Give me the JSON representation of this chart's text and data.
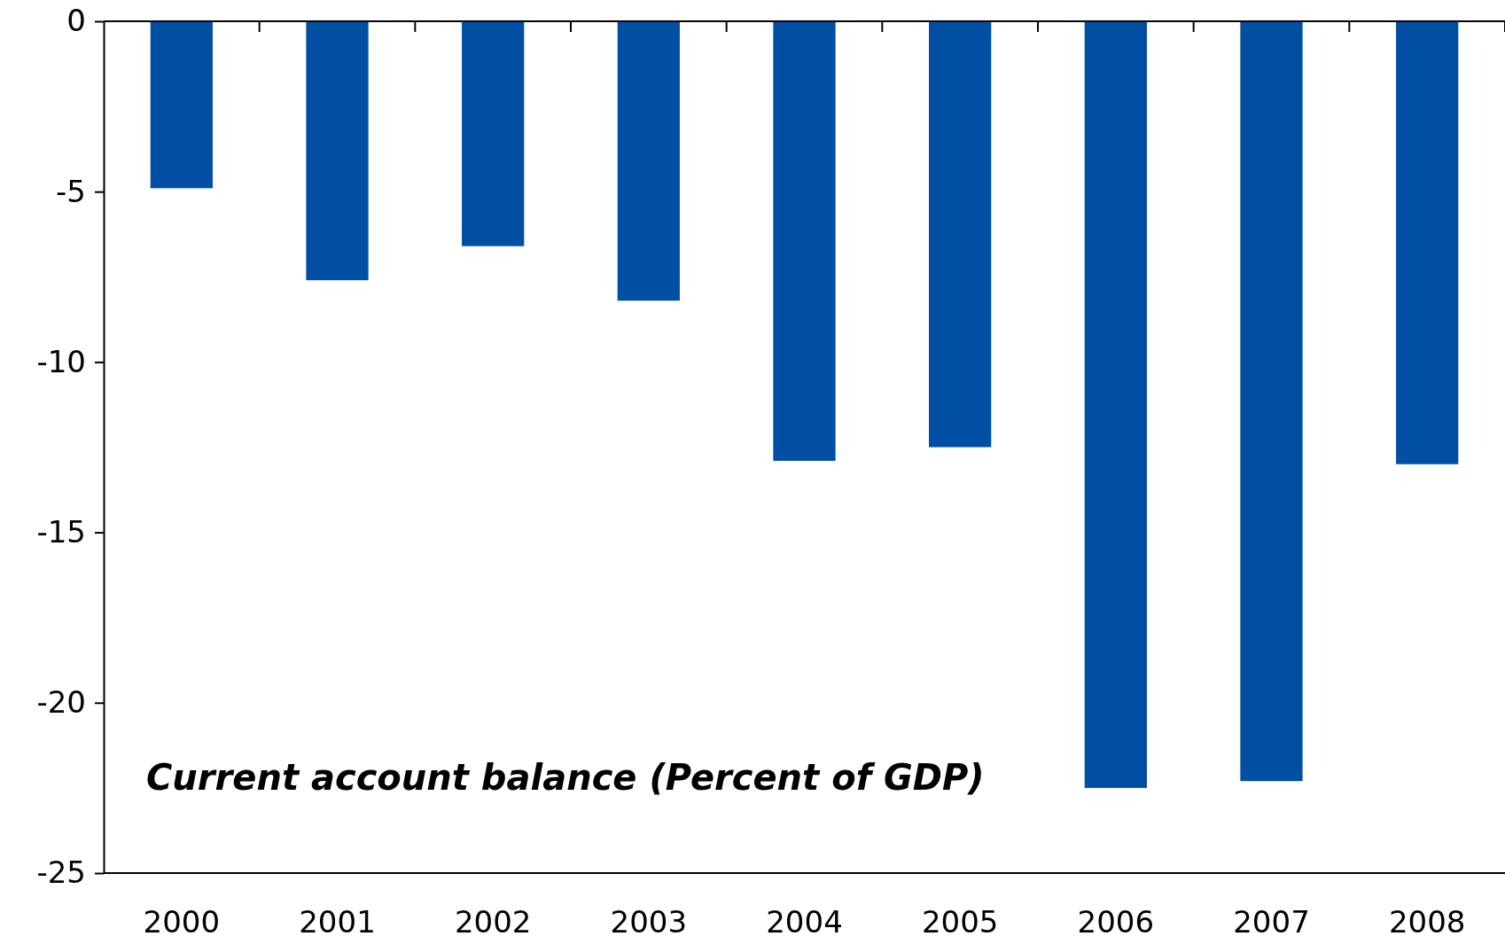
{
  "chart_data": {
    "type": "bar",
    "categories": [
      "2000",
      "2001",
      "2002",
      "2003",
      "2004",
      "2005",
      "2006",
      "2007",
      "2008"
    ],
    "values": [
      -4.9,
      -7.6,
      -6.6,
      -8.2,
      -12.9,
      -12.5,
      -22.5,
      -22.3,
      -13.0
    ],
    "color": "#004fa3",
    "ylim": [
      -25,
      0
    ],
    "yticks": [
      0,
      -5,
      -10,
      -15,
      -20,
      -25
    ],
    "annotations": [
      "Current account balance (Percent of GDP)"
    ]
  }
}
